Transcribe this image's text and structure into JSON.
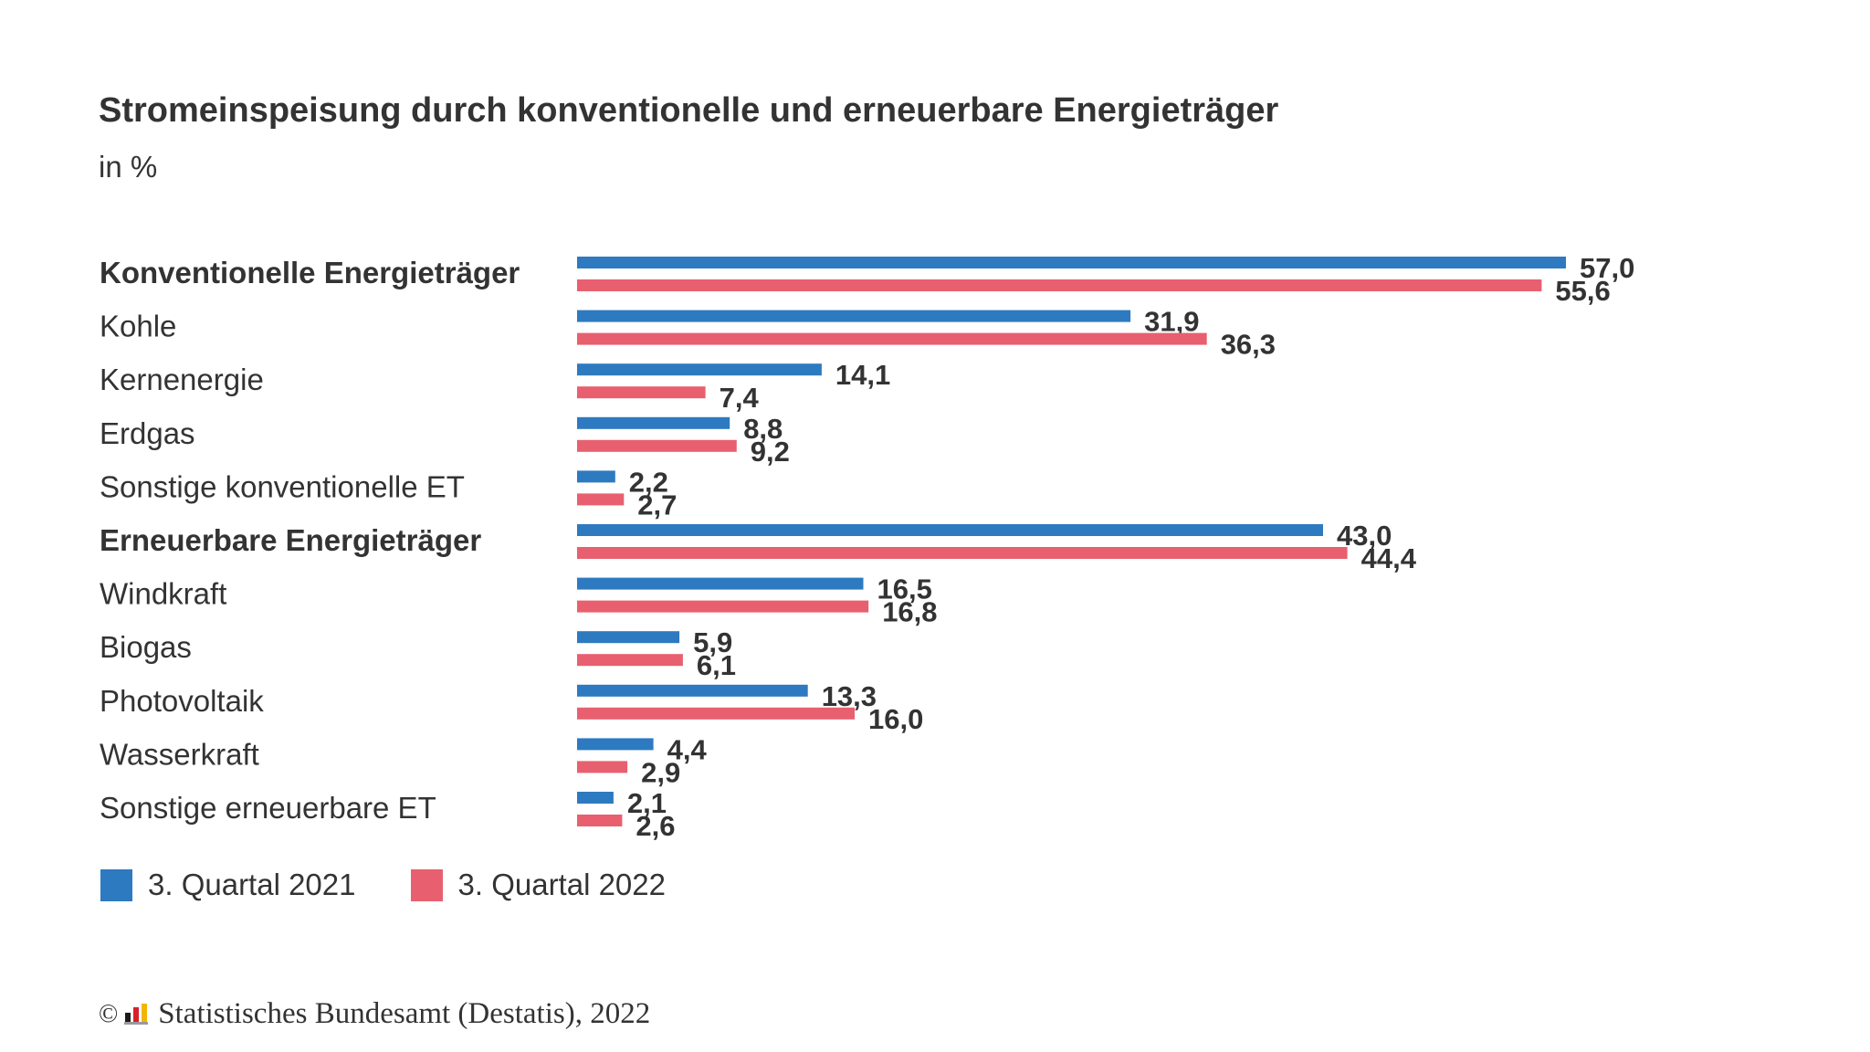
{
  "chart_data": {
    "type": "bar",
    "orientation": "horizontal",
    "title": "Stromeinspeisung durch konventionelle und erneuerbare Energieträger",
    "subtitle": "in %",
    "categories": [
      "Konventionelle Energieträger",
      "Kohle",
      "Kernenergie",
      "Erdgas",
      "Sonstige konventionelle ET",
      "Erneuerbare Energieträger",
      "Windkraft",
      "Biogas",
      "Photovoltaik",
      "Wasserkraft",
      "Sonstige erneuerbare ET"
    ],
    "bold_categories": [
      0,
      5
    ],
    "series": [
      {
        "name": "3. Quartal 2021",
        "color": "#2e7ac0",
        "values": [
          57.0,
          31.9,
          14.1,
          8.8,
          2.2,
          43.0,
          16.5,
          5.9,
          13.3,
          4.4,
          2.1
        ],
        "labels": [
          "57,0",
          "31,9",
          "14,1",
          "8,8",
          "2,2",
          "43,0",
          "16,5",
          "5,9",
          "13,3",
          "4,4",
          "2,1"
        ]
      },
      {
        "name": "3. Quartal 2022",
        "color": "#e8606f",
        "values": [
          55.6,
          36.3,
          7.4,
          9.2,
          2.7,
          44.4,
          16.8,
          6.1,
          16.0,
          2.9,
          2.6
        ],
        "labels": [
          "55,6",
          "36,3",
          "7,4",
          "9,2",
          "2,7",
          "44,4",
          "16,8",
          "6,1",
          "16,0",
          "2,9",
          "2,6"
        ]
      }
    ],
    "xlim": [
      0,
      60
    ],
    "grid": false,
    "legend_position": "bottom-left"
  },
  "source": {
    "copyright": "©",
    "text": "Statistisches Bundesamt (Destatis), 2022",
    "logo_icon": "destatis-logo-icon"
  }
}
